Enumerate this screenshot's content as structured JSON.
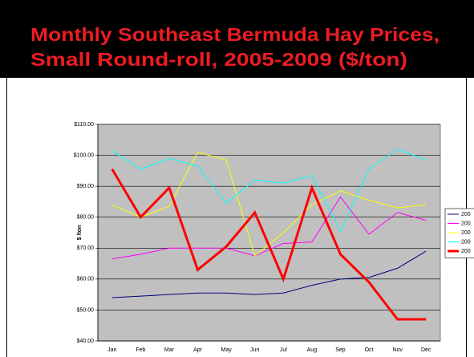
{
  "chart_data": {
    "type": "line",
    "title": [
      "Monthly Southeast Bermuda Hay Prices,",
      "Small Round-roll, 2005-2009 ($/ton)"
    ],
    "y_label": "$ /ton",
    "categories": [
      "Jan",
      "Feb",
      "Mar",
      "Apr",
      "May",
      "Jun",
      "Jul",
      "Aug",
      "Sep",
      "Oct",
      "Nov",
      "Dec"
    ],
    "series": [
      {
        "name": "200",
        "color": "#000080",
        "width": 1,
        "values": [
          54,
          54.5,
          55,
          55.5,
          55.5,
          55,
          55.5,
          58,
          60,
          60.5,
          63.5,
          69
        ]
      },
      {
        "name": "200",
        "color": "#ff00ff",
        "width": 1,
        "values": [
          66.5,
          68,
          70,
          70,
          70,
          67.5,
          71.5,
          72,
          86.5,
          74.5,
          81.5,
          79
        ]
      },
      {
        "name": "200",
        "color": "#ffff00",
        "width": 1,
        "values": [
          84,
          80,
          83.5,
          101,
          98.5,
          67.5,
          75,
          84,
          88.5,
          85.5,
          83,
          84
        ]
      },
      {
        "name": "200",
        "color": "#00ffff",
        "width": 1,
        "values": [
          101.5,
          95.5,
          99,
          96.5,
          84.5,
          92,
          91,
          93.5,
          75.5,
          95.5,
          102,
          98.5
        ]
      },
      {
        "name": "200",
        "color": "#ff0000",
        "width": 3,
        "values": [
          95.5,
          80,
          89.5,
          63,
          70.5,
          81.5,
          60,
          89.5,
          68,
          59,
          47,
          47
        ]
      }
    ],
    "ylim": [
      40,
      110
    ],
    "yticks": [
      {
        "value": 40,
        "label": "$40.00"
      },
      {
        "value": 50,
        "label": "$50.00"
      },
      {
        "value": 60,
        "label": "$60.00"
      },
      {
        "value": 70,
        "label": "$70.00"
      },
      {
        "value": 80,
        "label": "$80.00"
      },
      {
        "value": 90,
        "label": "$90.00"
      },
      {
        "value": 100,
        "label": "$100.00"
      },
      {
        "value": 110,
        "label": "$110.00"
      }
    ],
    "grid": true,
    "legend": "right"
  }
}
